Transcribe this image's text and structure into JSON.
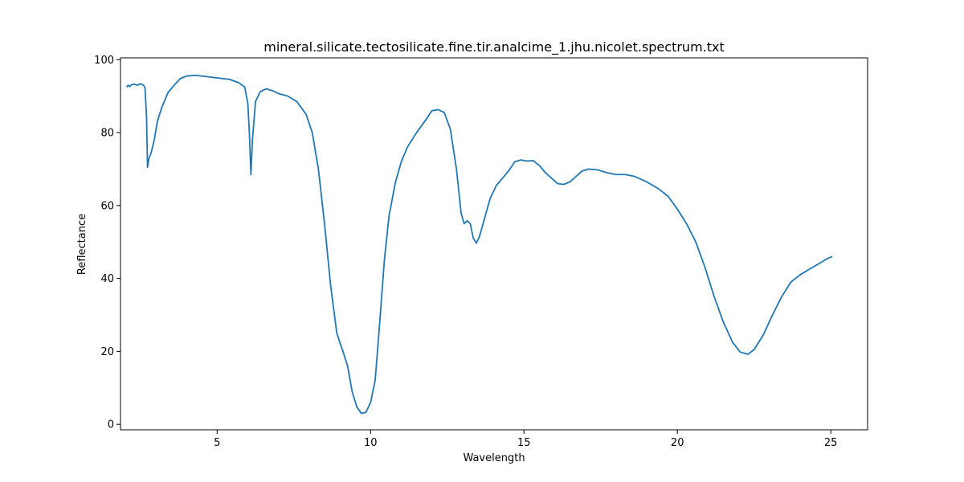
{
  "chart_data": {
    "type": "line",
    "title": "mineral.silicate.tectosilicate.fine.tir.analcime_1.jhu.nicolet.spectrum.txt",
    "xlabel": "Wavelength",
    "ylabel": "Reflectance",
    "xlim": [
      1.85,
      26.2
    ],
    "ylim": [
      -1.5,
      100.5
    ],
    "xticks": [
      5,
      10,
      15,
      20,
      25
    ],
    "yticks": [
      0,
      20,
      40,
      60,
      80,
      100
    ],
    "grid": false,
    "series": [
      {
        "color": "#1f77b4",
        "points": [
          [
            2.05,
            92.5
          ],
          [
            2.1,
            93.0
          ],
          [
            2.15,
            92.6
          ],
          [
            2.2,
            93.1
          ],
          [
            2.3,
            93.3
          ],
          [
            2.4,
            93.0
          ],
          [
            2.5,
            93.4
          ],
          [
            2.6,
            93.0
          ],
          [
            2.65,
            92.2
          ],
          [
            2.7,
            84.0
          ],
          [
            2.73,
            70.5
          ],
          [
            2.78,
            73.0
          ],
          [
            2.85,
            74.5
          ],
          [
            2.95,
            78.0
          ],
          [
            3.05,
            83.0
          ],
          [
            3.2,
            87.0
          ],
          [
            3.4,
            91.0
          ],
          [
            3.6,
            93.0
          ],
          [
            3.8,
            94.8
          ],
          [
            4.0,
            95.5
          ],
          [
            4.3,
            95.7
          ],
          [
            4.6,
            95.4
          ],
          [
            5.0,
            95.0
          ],
          [
            5.4,
            94.6
          ],
          [
            5.7,
            93.7
          ],
          [
            5.9,
            92.5
          ],
          [
            6.0,
            88.0
          ],
          [
            6.05,
            80.0
          ],
          [
            6.1,
            68.5
          ],
          [
            6.15,
            78.0
          ],
          [
            6.25,
            88.5
          ],
          [
            6.4,
            91.2
          ],
          [
            6.6,
            92.0
          ],
          [
            6.8,
            91.5
          ],
          [
            7.0,
            90.7
          ],
          [
            7.3,
            90.0
          ],
          [
            7.6,
            88.5
          ],
          [
            7.9,
            85.0
          ],
          [
            8.1,
            80.0
          ],
          [
            8.3,
            70.0
          ],
          [
            8.5,
            55.0
          ],
          [
            8.7,
            38.0
          ],
          [
            8.9,
            25.0
          ],
          [
            9.1,
            20.0
          ],
          [
            9.25,
            16.0
          ],
          [
            9.4,
            9.0
          ],
          [
            9.55,
            4.8
          ],
          [
            9.7,
            3.0
          ],
          [
            9.85,
            3.3
          ],
          [
            10.0,
            6.0
          ],
          [
            10.15,
            12.0
          ],
          [
            10.3,
            28.0
          ],
          [
            10.45,
            45.0
          ],
          [
            10.6,
            57.0
          ],
          [
            10.8,
            66.0
          ],
          [
            11.0,
            72.0
          ],
          [
            11.2,
            76.0
          ],
          [
            11.5,
            80.0
          ],
          [
            11.8,
            83.5
          ],
          [
            12.0,
            86.0
          ],
          [
            12.2,
            86.3
          ],
          [
            12.4,
            85.5
          ],
          [
            12.6,
            81.0
          ],
          [
            12.8,
            70.0
          ],
          [
            12.95,
            58.0
          ],
          [
            13.05,
            55.0
          ],
          [
            13.15,
            55.8
          ],
          [
            13.25,
            55.0
          ],
          [
            13.35,
            51.0
          ],
          [
            13.45,
            49.7
          ],
          [
            13.55,
            51.5
          ],
          [
            13.7,
            56.0
          ],
          [
            13.9,
            62.0
          ],
          [
            14.1,
            65.5
          ],
          [
            14.3,
            67.5
          ],
          [
            14.5,
            69.5
          ],
          [
            14.7,
            72.0
          ],
          [
            14.9,
            72.5
          ],
          [
            15.1,
            72.2
          ],
          [
            15.3,
            72.3
          ],
          [
            15.5,
            71.0
          ],
          [
            15.7,
            69.0
          ],
          [
            15.9,
            67.5
          ],
          [
            16.1,
            66.0
          ],
          [
            16.3,
            65.8
          ],
          [
            16.5,
            66.5
          ],
          [
            16.7,
            68.0
          ],
          [
            16.9,
            69.5
          ],
          [
            17.1,
            70.0
          ],
          [
            17.4,
            69.8
          ],
          [
            17.7,
            69.0
          ],
          [
            18.0,
            68.5
          ],
          [
            18.3,
            68.5
          ],
          [
            18.6,
            68.0
          ],
          [
            19.0,
            66.5
          ],
          [
            19.4,
            64.5
          ],
          [
            19.7,
            62.5
          ],
          [
            20.0,
            59.0
          ],
          [
            20.3,
            55.0
          ],
          [
            20.6,
            50.0
          ],
          [
            20.9,
            43.0
          ],
          [
            21.2,
            35.0
          ],
          [
            21.5,
            28.0
          ],
          [
            21.8,
            22.5
          ],
          [
            22.05,
            19.8
          ],
          [
            22.3,
            19.2
          ],
          [
            22.5,
            20.5
          ],
          [
            22.8,
            24.5
          ],
          [
            23.1,
            30.0
          ],
          [
            23.4,
            35.0
          ],
          [
            23.7,
            39.0
          ],
          [
            24.0,
            41.0
          ],
          [
            24.3,
            42.5
          ],
          [
            24.6,
            44.0
          ],
          [
            24.9,
            45.5
          ],
          [
            25.05,
            46.0
          ]
        ]
      }
    ]
  }
}
